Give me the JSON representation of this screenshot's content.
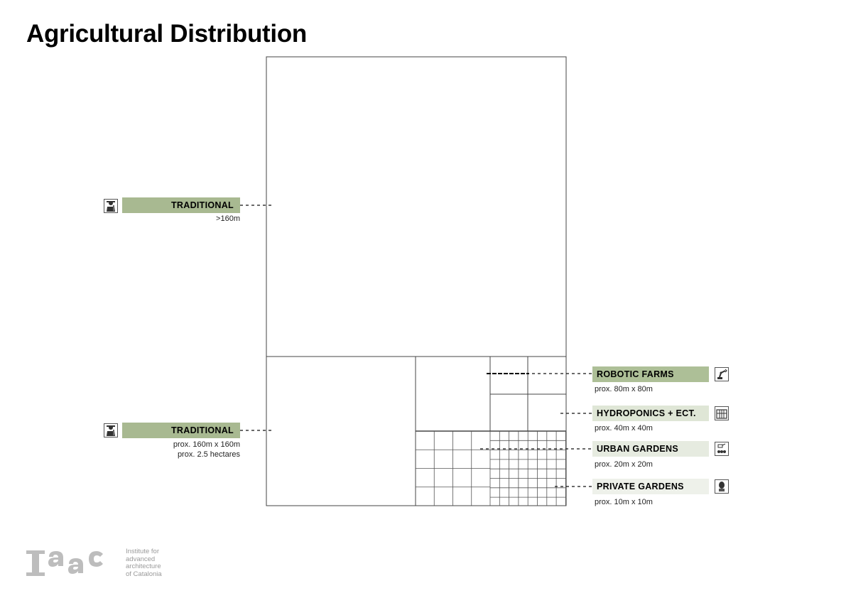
{
  "title": "Agricultural Distribution",
  "colors": {
    "traditional_fill": "#a8b991",
    "robotic_fill": "#adbf97",
    "hydroponics_fill": "#dfe6d6",
    "urban_fill": "#e6ebe0",
    "private_fill": "#eef1ea",
    "line": "#333333",
    "logo": "#bdbdbd"
  },
  "labels": {
    "traditional_large": {
      "name": "TRADITIONAL",
      "size": ">160m",
      "icon": "farmer-icon"
    },
    "traditional_small": {
      "name": "TRADITIONAL",
      "size_line1": "prox. 160m x 160m",
      "size_line2": "prox. 2.5 hectares",
      "icon": "farmer-icon"
    },
    "robotic": {
      "name": "ROBOTIC FARMS",
      "size": "prox. 80m x 80m",
      "icon": "robot-arm-icon"
    },
    "hydroponics": {
      "name": "HYDROPONICS + ECT.",
      "size": "prox. 40m x 40m",
      "icon": "greenhouse-icon"
    },
    "urban": {
      "name": "URBAN GARDENS",
      "size": "prox. 20m x 20m",
      "icon": "watering-can-icon"
    },
    "private": {
      "name": "PRIVATE GARDENS",
      "size": "prox. 10m x 10m",
      "icon": "plant-icon"
    }
  },
  "footer": {
    "logo_text": "Iaac",
    "institute_lines": [
      "Institute for",
      "advanced",
      "architecture",
      "of Catalonia"
    ]
  }
}
